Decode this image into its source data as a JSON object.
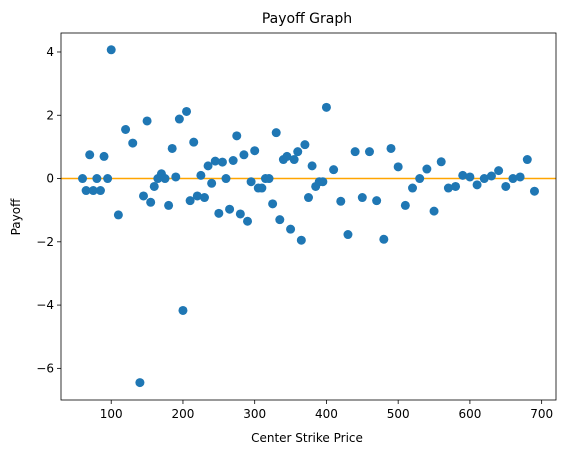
{
  "chart_data": {
    "type": "scatter",
    "title": "Payoff Graph",
    "xlabel": "Center Strike Price",
    "ylabel": "Payoff",
    "xlim": [
      30,
      720
    ],
    "ylim": [
      -7,
      4.6
    ],
    "xticks": [
      100,
      200,
      300,
      400,
      500,
      600,
      700
    ],
    "yticks": [
      -6,
      -4,
      -2,
      0,
      2,
      4
    ],
    "grid": false,
    "legend": "none",
    "point_color": "#1f77b4",
    "reference_line": {
      "y": 0,
      "color": "#ffa500"
    },
    "points": [
      [
        60,
        0.0
      ],
      [
        65,
        -0.38
      ],
      [
        70,
        0.75
      ],
      [
        75,
        -0.38
      ],
      [
        80,
        0.0
      ],
      [
        85,
        -0.38
      ],
      [
        90,
        0.7
      ],
      [
        95,
        0.0
      ],
      [
        100,
        4.07
      ],
      [
        110,
        -1.15
      ],
      [
        120,
        1.55
      ],
      [
        130,
        1.12
      ],
      [
        140,
        -6.45
      ],
      [
        145,
        -0.55
      ],
      [
        150,
        1.82
      ],
      [
        155,
        -0.75
      ],
      [
        160,
        -0.25
      ],
      [
        165,
        0.0
      ],
      [
        170,
        0.15
      ],
      [
        175,
        0.0
      ],
      [
        180,
        -0.85
      ],
      [
        185,
        0.95
      ],
      [
        190,
        0.05
      ],
      [
        195,
        1.88
      ],
      [
        200,
        -4.17
      ],
      [
        205,
        2.12
      ],
      [
        210,
        -0.7
      ],
      [
        215,
        1.15
      ],
      [
        220,
        -0.55
      ],
      [
        225,
        0.1
      ],
      [
        230,
        -0.6
      ],
      [
        235,
        0.4
      ],
      [
        240,
        -0.15
      ],
      [
        245,
        0.55
      ],
      [
        250,
        -1.1
      ],
      [
        255,
        0.52
      ],
      [
        260,
        0.0
      ],
      [
        265,
        -0.97
      ],
      [
        270,
        0.57
      ],
      [
        275,
        1.35
      ],
      [
        280,
        -1.12
      ],
      [
        285,
        0.75
      ],
      [
        290,
        -1.35
      ],
      [
        295,
        -0.1
      ],
      [
        300,
        0.88
      ],
      [
        305,
        -0.3
      ],
      [
        310,
        -0.3
      ],
      [
        315,
        0.0
      ],
      [
        320,
        0.0
      ],
      [
        325,
        -0.8
      ],
      [
        330,
        1.45
      ],
      [
        335,
        -1.3
      ],
      [
        340,
        0.6
      ],
      [
        345,
        0.7
      ],
      [
        350,
        -1.6
      ],
      [
        355,
        0.6
      ],
      [
        360,
        0.85
      ],
      [
        365,
        -1.95
      ],
      [
        370,
        1.07
      ],
      [
        375,
        -0.6
      ],
      [
        380,
        0.4
      ],
      [
        385,
        -0.25
      ],
      [
        390,
        -0.1
      ],
      [
        395,
        -0.1
      ],
      [
        400,
        2.25
      ],
      [
        410,
        0.28
      ],
      [
        420,
        -0.72
      ],
      [
        430,
        -1.77
      ],
      [
        440,
        0.85
      ],
      [
        450,
        -0.6
      ],
      [
        460,
        0.85
      ],
      [
        470,
        -0.7
      ],
      [
        480,
        -1.92
      ],
      [
        490,
        0.95
      ],
      [
        500,
        0.37
      ],
      [
        510,
        -0.85
      ],
      [
        520,
        -0.3
      ],
      [
        530,
        0.0
      ],
      [
        540,
        0.3
      ],
      [
        550,
        -1.03
      ],
      [
        560,
        0.53
      ],
      [
        570,
        -0.3
      ],
      [
        580,
        -0.25
      ],
      [
        590,
        0.1
      ],
      [
        600,
        0.05
      ],
      [
        610,
        -0.2
      ],
      [
        620,
        0.0
      ],
      [
        630,
        0.08
      ],
      [
        640,
        0.25
      ],
      [
        650,
        -0.25
      ],
      [
        660,
        0.0
      ],
      [
        670,
        0.05
      ],
      [
        680,
        0.6
      ],
      [
        690,
        -0.4
      ]
    ]
  }
}
